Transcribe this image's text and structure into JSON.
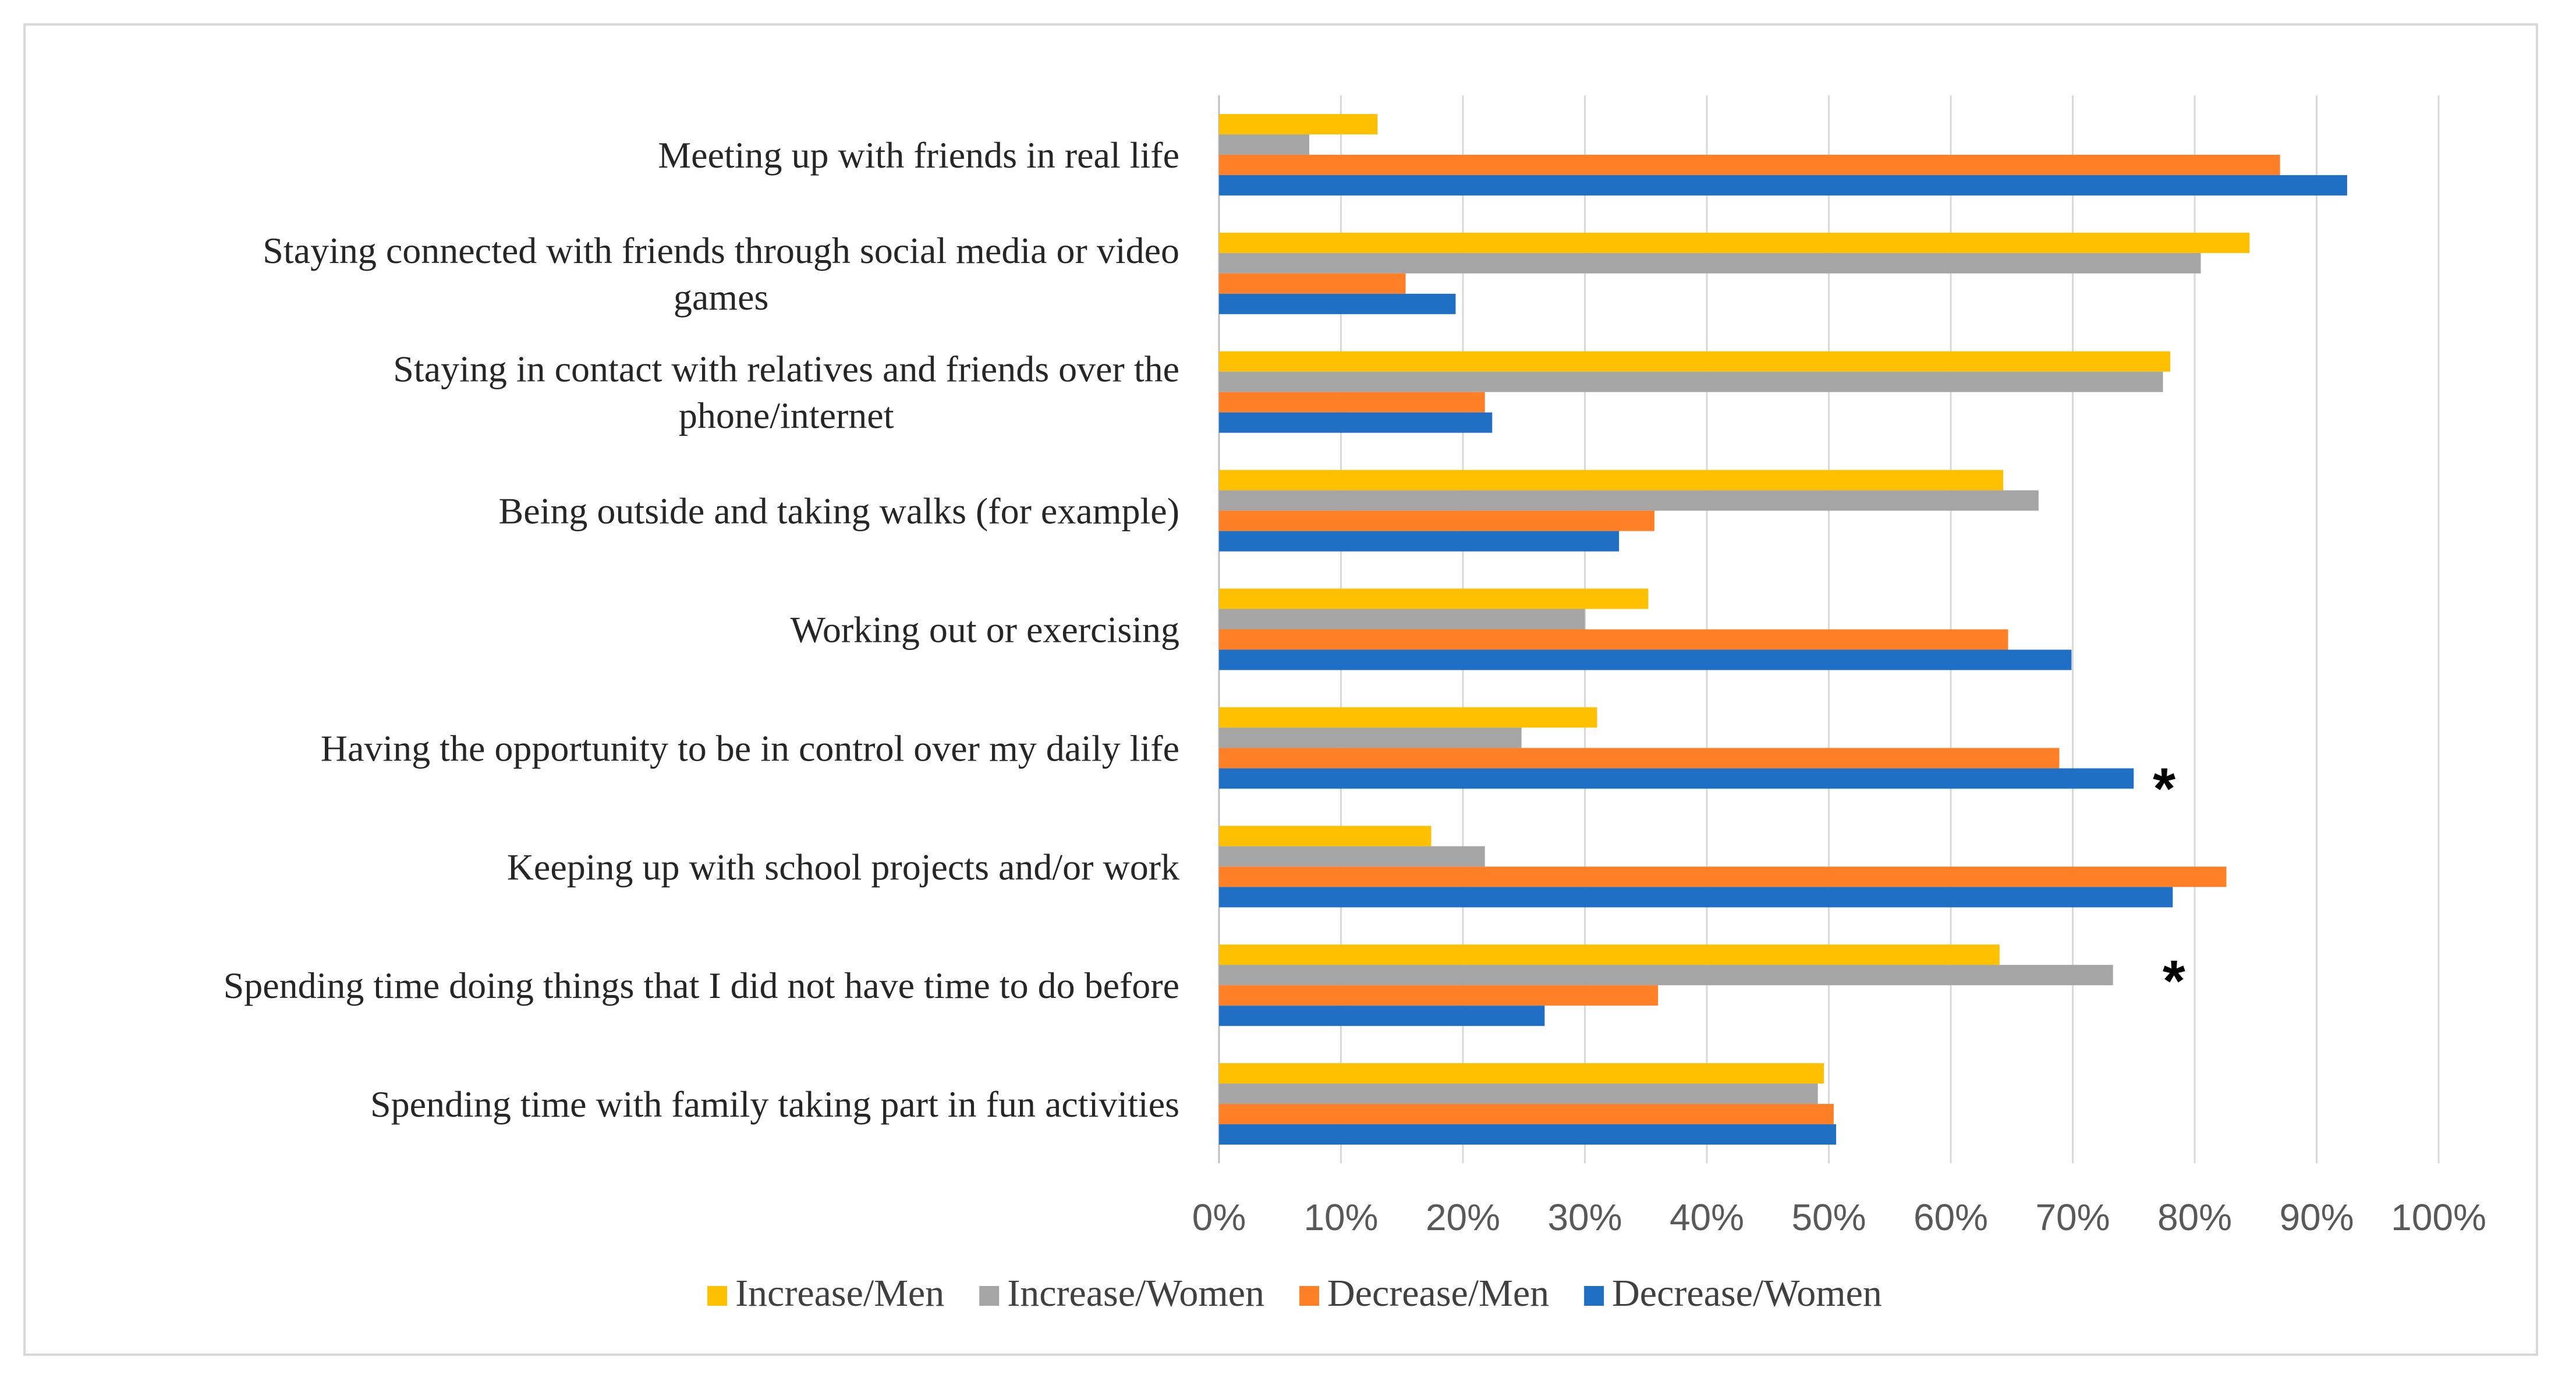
{
  "chart_data": {
    "type": "bar",
    "orientation": "horizontal",
    "title": "",
    "xlabel": "",
    "ylabel": "",
    "xlim": [
      0,
      100
    ],
    "tick_values": [
      0,
      10,
      20,
      30,
      40,
      50,
      60,
      70,
      80,
      90,
      100
    ],
    "tick_labels": [
      "0%",
      "10%",
      "20%",
      "30%",
      "40%",
      "50%",
      "60%",
      "70%",
      "80%",
      "90%",
      "100%"
    ],
    "grid": true,
    "legend_position": "bottom",
    "categories": [
      [
        "Meeting up with friends in real life"
      ],
      [
        "Staying connected with friends through social media or video",
        "games"
      ],
      [
        "Staying in contact with relatives and friends over the",
        "phone/internet"
      ],
      [
        "Being outside and taking walks (for example)"
      ],
      [
        "Working out or exercising"
      ],
      [
        "Having the opportunity to be in control over my daily life"
      ],
      [
        "Keeping up with school projects and/or work"
      ],
      [
        "Spending time doing things that I did not have time to do before"
      ],
      [
        "Spending time with family taking part in fun activities"
      ]
    ],
    "series": [
      {
        "name": "Increase/Men",
        "color": "#FFC000",
        "values": [
          13,
          84.5,
          78,
          64.3,
          35.2,
          31,
          17.4,
          64,
          49.6
        ]
      },
      {
        "name": "Increase/Women",
        "color": "#A5A5A5",
        "values": [
          7.4,
          80.5,
          77.4,
          67.2,
          30,
          24.8,
          21.8,
          73.3,
          49.1
        ]
      },
      {
        "name": "Decrease/Men",
        "color": "#FF7F27",
        "values": [
          87,
          15.3,
          21.8,
          35.7,
          64.7,
          68.9,
          82.6,
          36,
          50.4
        ]
      },
      {
        "name": "Decrease/Women",
        "color": "#1F6FC5",
        "values": [
          92.5,
          19.4,
          22.4,
          32.8,
          69.9,
          75,
          78.2,
          26.7,
          50.6
        ]
      }
    ],
    "annotations": [
      {
        "text": "*",
        "category_index": 5,
        "at_value": 77.5
      },
      {
        "text": "*",
        "category_index": 7,
        "at_value": 78.3
      }
    ]
  }
}
